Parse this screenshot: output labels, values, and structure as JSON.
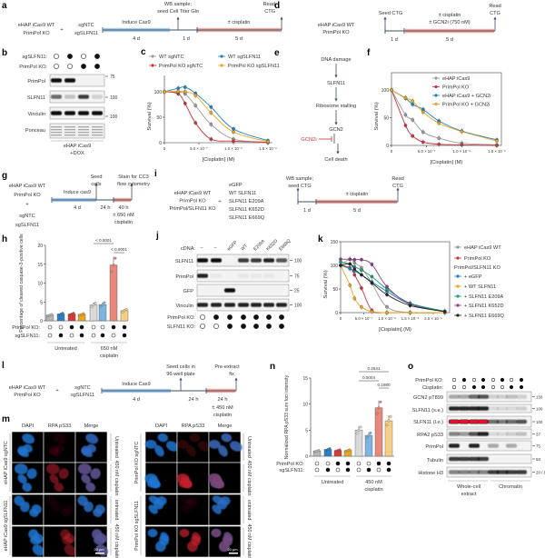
{
  "colors": {
    "gray": "#9a9a9a",
    "red": "#c8323a",
    "blue": "#1e7fc0",
    "orange": "#e8a520",
    "green": "#1a9e6e",
    "purple": "#8b3a8b",
    "black": "#222222",
    "timeline": "#3d4d60",
    "induce": "#a8cdec",
    "treat": "#f3aaa2",
    "dapi": "#1f74d0",
    "rpa": "#c0202c"
  },
  "a": {
    "label": "a",
    "cells": [
      "eHAP iCas9 WT",
      "PrimPol KO"
    ],
    "plus": "+",
    "guides": [
      "sgNTC",
      "sgSLFN11"
    ],
    "top": [
      "WB sample;",
      "seed Cell Titer Glo"
    ],
    "induce": "Induce Cas9",
    "d1": "4 d",
    "d2": "1 d",
    "treat": "± cisplatin",
    "d3": "5 d",
    "read": [
      "Read",
      "CTG"
    ]
  },
  "d": {
    "label": "d",
    "cells": [
      "eHAP iCas9 WT",
      "PrimPol KO"
    ],
    "seed": "Seed CTG",
    "treat": [
      "± cisplatin",
      "± GCN2i (750 nM)"
    ],
    "read": [
      "Read",
      "CTG"
    ],
    "d1": "1 d",
    "d2": "5 d"
  },
  "b": {
    "label": "b",
    "rows": [
      "sgSLFN11:",
      "PrimPol KO:"
    ],
    "dots": [
      [
        0,
        1,
        0,
        1
      ],
      [
        0,
        0,
        1,
        1
      ]
    ],
    "blots": [
      {
        "name": "PrimPol",
        "bands": [
          1,
          1,
          0,
          0
        ]
      },
      {
        "name": "SLFN11",
        "bands": [
          0.6,
          0.2,
          0.8,
          0.15
        ]
      },
      {
        "name": "Vinculin",
        "bands": [
          1,
          1,
          1,
          1
        ]
      },
      {
        "name": "Ponceau",
        "bands": [
          0.3,
          0.3,
          0.3,
          0.3
        ]
      }
    ],
    "mw": [
      "75",
      "100",
      "100"
    ],
    "footer": [
      "eHAP iCas9",
      "+DOX"
    ]
  },
  "e": {
    "label": "e",
    "steps": [
      "DNA damage",
      "SLFN11",
      "Ribosome stalling",
      "GCN2",
      "Cell death"
    ],
    "inhibitor": "GCN2i"
  },
  "g": {
    "label": "g",
    "cells": [
      "eHAP iCas9 WT",
      "PrimPol KO",
      "+",
      "sgNTC",
      "sgSLFN11"
    ],
    "induce": "Induce cas9",
    "d1": "4 d",
    "seed": [
      "Seed",
      "cells"
    ],
    "stain": [
      "Stain for CC3",
      "flow cytometry"
    ],
    "d2": "24 h",
    "d3": "40 h",
    "treat": [
      "± 650 nM",
      "cisplatin"
    ]
  },
  "i": {
    "label": "i",
    "cells": [
      "eHAP iCas9 WT",
      "PrimPol KO",
      "PrimPol/SLFN11 KO"
    ],
    "plus": "+",
    "cdnas": [
      "eGFP",
      "WT SLFN11",
      "SLFN11 E209A",
      "SLFN11 K652D",
      "SLFN11 E669Q"
    ],
    "top": [
      "WB sample;",
      "seed CTG"
    ],
    "read": [
      "Read",
      "CTG"
    ],
    "treat": "± cisplatin",
    "d1": "1 d",
    "d2": "5 d"
  },
  "j": {
    "label": "j",
    "cdna_label": "cDNA:",
    "lanes": [
      "–",
      "–",
      "eGFP",
      "WT",
      "E209A",
      "K652D",
      "E669Q"
    ],
    "blots": [
      {
        "name": "SLFN11",
        "bands": [
          1,
          1,
          0,
          0.8,
          0.8,
          0.9,
          0.7
        ]
      },
      {
        "name": "PrimPol",
        "bands": [
          0.9,
          0.05,
          0,
          0.05,
          0.05,
          0.05,
          0
        ]
      },
      {
        "name": "GFP",
        "bands": [
          0,
          0,
          1,
          0,
          0,
          0,
          0
        ]
      },
      {
        "name": "Vinculin",
        "bands": [
          0.9,
          0.9,
          0.9,
          0.9,
          0.9,
          0.9,
          0.9
        ]
      }
    ],
    "mw": [
      "100",
      "75",
      "25",
      "100"
    ],
    "rows": [
      "PrimPol KO:",
      "SLFN11 KO:"
    ],
    "dots": [
      [
        0,
        1,
        1,
        1,
        1,
        1,
        1
      ],
      [
        0,
        0,
        1,
        1,
        1,
        1,
        1
      ]
    ]
  },
  "l": {
    "label": "l",
    "cells": [
      "eHAP iCas9 WT",
      "PrimPol KO"
    ],
    "plus": "+",
    "guides": [
      "sgNTC",
      "sgSLFN11"
    ],
    "induce": "Induce Cas9",
    "d1": "4 d",
    "seed": [
      "Seed cells in",
      "96-well plate"
    ],
    "fix": [
      "Pre-extract",
      "fix"
    ],
    "d2": "24 h",
    "d3": "24 h",
    "treat": [
      "± 450 nM",
      "cisplatin"
    ]
  },
  "m": {
    "label": "m",
    "channels": [
      "DAPI",
      "RPA pS33",
      "Merge"
    ],
    "left": {
      "groups": [
        "eHAP iCas9 sgNTC",
        "eHAP iCas9 sgSLFN11"
      ],
      "rows": [
        "Untreated",
        "450 nM cisplatin",
        "untreated",
        "450 nM cisplatin"
      ],
      "rpa_level": [
        0.15,
        0.6,
        0.1,
        0.55
      ]
    },
    "right": {
      "groups": [
        "PrimPol KO sgNTC",
        "PrimPol KO sgSLFN11"
      ],
      "rows": [
        "Untreated",
        "450 nM cisplatin",
        "untreated",
        "450 nM cisplatin"
      ],
      "rpa_level": [
        0.25,
        0.9,
        0.1,
        0.8
      ]
    },
    "scale": "20 µm"
  },
  "o": {
    "label": "o",
    "rows": [
      "PrimPol KO:",
      "Cisplatin:"
    ],
    "dots": [
      [
        0,
        1,
        0,
        1,
        0,
        1,
        0,
        1
      ],
      [
        0,
        0,
        1,
        1,
        0,
        0,
        1,
        1
      ]
    ],
    "blots": [
      {
        "name": "GCN2 pT899",
        "bands": [
          0.3,
          0.3,
          0.6,
          0.7,
          0.15,
          0.15,
          0.2,
          0.15
        ],
        "mw": "150"
      },
      {
        "name": "SLFN11 (s.e.)",
        "bands": [
          0.9,
          0.9,
          0.9,
          0.9,
          0.1,
          0.1,
          0.1,
          0.15
        ],
        "mw": "100"
      },
      {
        "name": "SLFN11 (l.e.)",
        "bands": [
          2,
          2,
          2,
          2,
          0.6,
          0.55,
          0.6,
          0.7
        ],
        "mw": "100"
      },
      {
        "name": "RPA2 pS33",
        "bands": [
          0.5,
          0.4,
          0.7,
          0.9,
          0.1,
          0.1,
          0.15,
          0.2
        ],
        "mw": "37"
      },
      {
        "name": "PrimPol",
        "bands": [
          0.9,
          0,
          0.9,
          0,
          0.3,
          0,
          0.3,
          0
        ],
        "mw": "75"
      },
      {
        "name": "Tubulin",
        "bands": [
          0.8,
          0.8,
          0.8,
          0.8,
          0,
          0,
          0,
          0
        ],
        "mw": "50"
      },
      {
        "name": "Histone H3",
        "bands": [
          0.5,
          0.5,
          0.5,
          0.5,
          0.8,
          0.8,
          0.8,
          0.8
        ],
        "mw": "20 / 15"
      }
    ],
    "groups": [
      [
        "Whole-cell",
        "extract"
      ],
      [
        "Chromatin"
      ]
    ]
  },
  "chart_data": [
    {
      "panel": "c",
      "type": "line",
      "xlabel": "[Cisplatin] (M)",
      "ylabel": "Survival (%)",
      "xlim": [
        0,
        1.5e-06
      ],
      "ylim": [
        0,
        125
      ],
      "xticks": [
        0,
        5e-07,
        1e-06,
        1.5e-06
      ],
      "xtick_labels": [
        "0",
        "5.0 × 10⁻⁷",
        "1.0 × 10⁻⁶",
        "1.5 × 10⁻⁶"
      ],
      "yticks": [
        0,
        50,
        100
      ],
      "legend": "top",
      "x": [
        0,
        2e-07,
        3e-07,
        4.5e-07,
        6.75e-07,
        1e-06,
        1.5e-06
      ],
      "series": [
        {
          "name": "WT sgNTC",
          "color": "#9a9a9a",
          "values": [
            100,
            99,
            96,
            73,
            36,
            7,
            0
          ]
        },
        {
          "name": "WT sgSLFN11",
          "color": "#1e7fc0",
          "values": [
            100,
            107,
            109,
            97,
            70,
            27,
            4
          ]
        },
        {
          "name": "PrimPol KO sgNTC",
          "color": "#c8323a",
          "values": [
            100,
            96,
            77,
            39,
            7,
            3,
            1
          ]
        },
        {
          "name": "PrimPol KO sgSLFN11",
          "color": "#e8a520",
          "values": [
            100,
            101,
            100,
            93,
            59,
            21,
            2
          ]
        }
      ]
    },
    {
      "panel": "f",
      "type": "line",
      "xlabel": "[Cisplatin] (M)",
      "ylabel": "Survival (%)",
      "xlim": [
        0,
        1.5e-06
      ],
      "ylim": [
        0,
        130
      ],
      "xticks": [
        0,
        5e-07,
        1e-06,
        1.5e-06
      ],
      "xtick_labels": [
        "0",
        "5.0 × 10⁻⁷",
        "1.0 × 10⁻⁶",
        "1.5 × 10⁻⁶"
      ],
      "yticks": [
        0,
        50,
        100
      ],
      "legend": "inside top-right",
      "x": [
        0,
        2e-07,
        3e-07,
        4.5e-07,
        6.75e-07,
        1e-06,
        1.5e-06
      ],
      "series": [
        {
          "name": "eHAP iCas9",
          "color": "#9a9a9a",
          "values": [
            100,
            55,
            46,
            24,
            13,
            4,
            1
          ]
        },
        {
          "name": "PrimPol KO",
          "color": "#c8323a",
          "values": [
            100,
            36,
            17,
            6,
            2,
            1,
            0
          ]
        },
        {
          "name": "eHAP iCas9 + GCN2i",
          "color": "#1e7fc0",
          "values": [
            100,
            85,
            74,
            65,
            44,
            26,
            10
          ]
        },
        {
          "name": "PrimPol KO + GCN2i",
          "color": "#e8a520",
          "values": [
            100,
            86,
            80,
            60,
            40,
            25,
            8
          ]
        }
      ]
    },
    {
      "panel": "h",
      "type": "bar",
      "ylabel": "Percentage of cleaved caspase-3-positive cells",
      "ylim": [
        0,
        20
      ],
      "yticks": [
        0,
        5,
        10,
        15,
        20
      ],
      "values": [
        1.5,
        1.8,
        1.8,
        1.7,
        4.2,
        4.3,
        14.8,
        2.7
      ],
      "colors": [
        "#b5b5b5",
        "#2b7fc4",
        "#d63a3a",
        "#e8a520",
        "#d9d9d9",
        "#7fb3e0",
        "#e8877a",
        "#f5cf85"
      ],
      "rows": [
        "PrimPol KO:",
        "sgSLFN11:"
      ],
      "dots": [
        [
          0,
          0,
          1,
          1,
          0,
          0,
          1,
          1
        ],
        [
          0,
          1,
          0,
          1,
          0,
          1,
          0,
          1
        ]
      ],
      "groups": [
        [
          "Untreated"
        ],
        [
          "650 nM",
          "cisplatin"
        ]
      ],
      "significance": [
        {
          "label": "< 0.0001",
          "from": 4,
          "to": 6
        },
        {
          "label": "< 0.0001",
          "from": 6,
          "to": 7
        }
      ]
    },
    {
      "panel": "k",
      "type": "line",
      "xlabel": "[Cisplatin] (M)",
      "ylabel": "Survival (%)",
      "xlim": [
        0,
        2.3e-06
      ],
      "ylim": [
        0,
        150
      ],
      "xticks": [
        0,
        5e-07,
        1e-06,
        1.5e-06,
        2e-06
      ],
      "xtick_labels": [
        "0",
        "5.0 × 10⁻⁷",
        "1.0 × 10⁻⁶",
        "1.5 × 10⁻⁶",
        "2.0 × 10⁻⁶"
      ],
      "yticks": [
        0,
        50,
        100,
        150
      ],
      "legend": "right",
      "legend_header": "PrimPol/SLFN11 KO",
      "x": [
        0,
        2e-07,
        3e-07,
        4.5e-07,
        6.75e-07,
        1e-06,
        1.5e-06,
        2.25e-06
      ],
      "series": [
        {
          "name": "eHAP iCas9 WT",
          "color": "#9a9a9a",
          "values": [
            100,
            113,
            105,
            95,
            62,
            12,
            0,
            0
          ]
        },
        {
          "name": "PrimPol KO",
          "color": "#c8323a",
          "values": [
            100,
            95,
            80,
            52,
            5,
            0,
            0,
            0
          ]
        },
        {
          "name": "+ eGFP",
          "color": "#1e7fc0",
          "values": [
            100,
            93,
            88,
            80,
            65,
            45,
            18,
            3
          ]
        },
        {
          "name": "+ WT SLFN11",
          "color": "#e8a520",
          "values": [
            100,
            58,
            30,
            12,
            2,
            0,
            0,
            0
          ]
        },
        {
          "name": "+ SLFN11 E209A",
          "color": "#1a9e6e",
          "values": [
            107,
            103,
            97,
            90,
            76,
            50,
            20,
            3
          ]
        },
        {
          "name": "+ SLFN11 K652D",
          "color": "#8b3a8b",
          "values": [
            113,
            113,
            112,
            112,
            102,
            55,
            18,
            2
          ]
        },
        {
          "name": "+ SLFN11 E669Q",
          "color": "#222222",
          "values": [
            100,
            103,
            92,
            80,
            63,
            38,
            15,
            2
          ]
        }
      ]
    },
    {
      "panel": "n",
      "type": "bar",
      "ylabel": "Normalized RPA pS33 sum foci intensity",
      "ylim": [
        0,
        15
      ],
      "yticks": [
        0,
        5,
        10,
        15
      ],
      "values": [
        1,
        1.3,
        1.1,
        1.1,
        5,
        4,
        9.3,
        6.8
      ],
      "colors": [
        "#b5b5b5",
        "#2b7fc4",
        "#d63a3a",
        "#e8a520",
        "#d9d9d9",
        "#7fb3e0",
        "#e8877a",
        "#f5cf85"
      ],
      "rows": [
        "PrimPol KO:",
        "sgSLFN11:"
      ],
      "dots": [
        [
          0,
          0,
          1,
          1,
          0,
          0,
          1,
          1
        ],
        [
          0,
          1,
          0,
          1,
          0,
          1,
          0,
          1
        ]
      ],
      "groups": [
        [
          "Untreated"
        ],
        [
          "450 nM",
          "cisplatin"
        ]
      ],
      "significance": [
        {
          "label": "0.2541",
          "from": 4,
          "to": 7
        },
        {
          "label": "0.0004",
          "from": 4,
          "to": 6
        },
        {
          "label": "0.1980",
          "from": 6,
          "to": 7
        }
      ]
    }
  ]
}
